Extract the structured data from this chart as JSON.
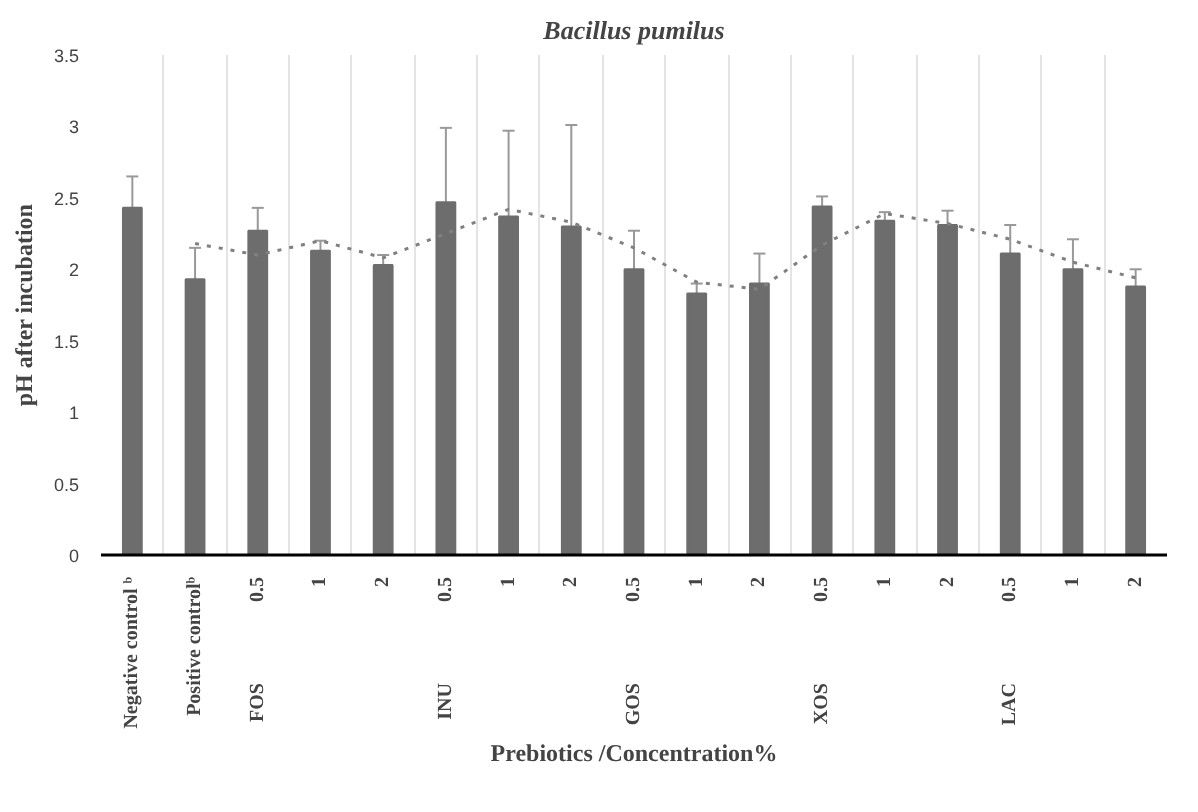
{
  "chart_data": {
    "type": "bar",
    "title": "Bacillus pumilus",
    "xlabel": "Prebiotics /Concentration%",
    "ylabel": "pH after incubation",
    "categories": [
      "Negative control ᵇ",
      "Positive controlᵇ",
      "0.5",
      "1",
      "2",
      "0.5",
      "1",
      "2",
      "0.5",
      "1",
      "2",
      "0.5",
      "1",
      "2",
      "0.5",
      "1",
      "2"
    ],
    "series": [
      {
        "color": "#6d6d6d",
        "values": [
          2.43,
          1.93,
          2.27,
          2.13,
          2.03,
          2.47,
          2.37,
          2.3,
          2.0,
          1.83,
          1.9,
          2.44,
          2.34,
          2.31,
          2.11,
          2.0,
          1.88
        ],
        "errors": [
          0.22,
          0.22,
          0.16,
          0.07,
          0.07,
          0.52,
          0.6,
          0.71,
          0.27,
          0.07,
          0.21,
          0.07,
          0.06,
          0.1,
          0.2,
          0.21,
          0.12
        ]
      },
      {
        "type": "line",
        "color": "#808080",
        "line_style": "dotted",
        "values": [
          null,
          2.18,
          2.1,
          2.2,
          2.08,
          2.25,
          2.42,
          2.33,
          2.15,
          1.91,
          1.86,
          2.17,
          2.39,
          2.32,
          2.21,
          2.05,
          1.94
        ]
      }
    ],
    "annotations": [
      "FOS",
      "INU",
      "GOS",
      "XOS",
      "LAC"
    ],
    "ylim": [
      0,
      3.5
    ],
    "yticks": [
      0,
      0.5,
      1,
      1.5,
      2,
      2.5,
      3,
      3.5
    ],
    "grid": "x"
  }
}
